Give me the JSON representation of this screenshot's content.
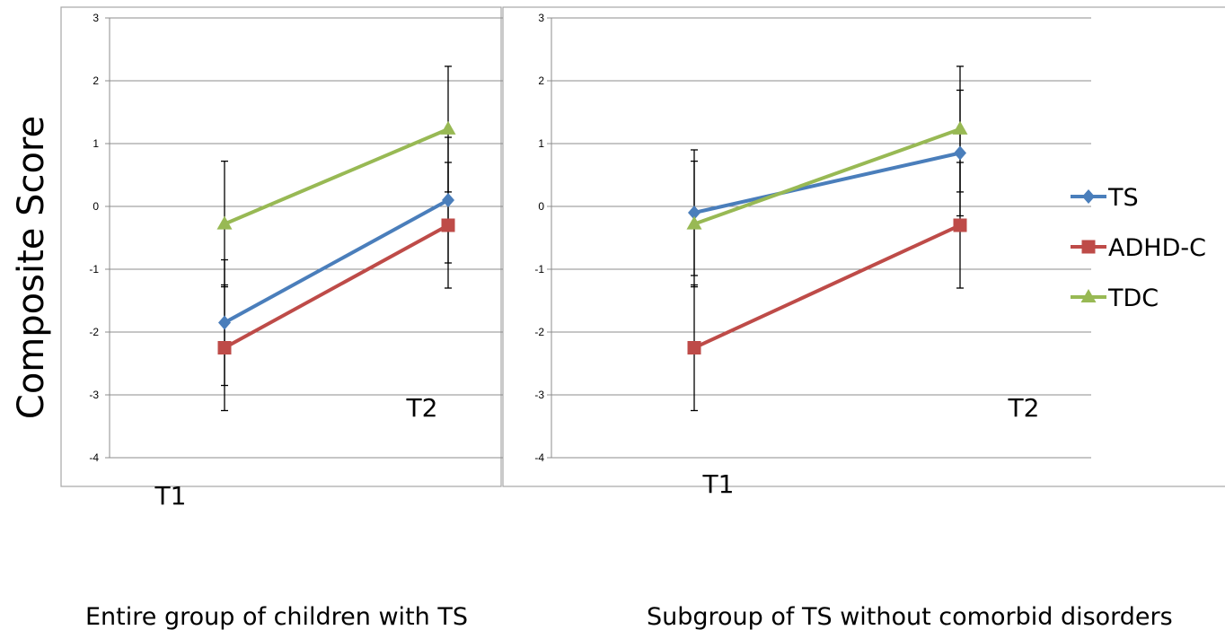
{
  "ylabel": "Composite Score",
  "legend": {
    "position": "right",
    "entries": [
      {
        "name": "TS",
        "color": "#4a7ebb",
        "marker": "diamond"
      },
      {
        "name": "ADHD-C",
        "color": "#be4b48",
        "marker": "square"
      },
      {
        "name": "TDC",
        "color": "#98b954",
        "marker": "triangle"
      }
    ]
  },
  "chart_data": [
    {
      "type": "line",
      "caption": "Entire group of children with TS",
      "categories": [
        "T1",
        "T2"
      ],
      "ylim": [
        -4,
        3
      ],
      "yticks": [
        "3",
        "2",
        "1",
        "0",
        "-1",
        "-2",
        "-3",
        "-4"
      ],
      "grid": true,
      "series": [
        {
          "name": "TS",
          "values": [
            -1.85,
            0.1
          ],
          "error": [
            1.0,
            1.0
          ]
        },
        {
          "name": "ADHD-C",
          "values": [
            -2.25,
            -0.3
          ],
          "error": [
            1.0,
            1.0
          ]
        },
        {
          "name": "TDC",
          "values": [
            -0.28,
            1.23
          ],
          "error": [
            1.0,
            1.0
          ]
        }
      ]
    },
    {
      "type": "line",
      "caption": "Subgroup of TS without comorbid disorders",
      "categories": [
        "T1",
        "T2"
      ],
      "ylim": [
        -4,
        3
      ],
      "yticks": [
        "3",
        "2",
        "1",
        "0",
        "-1",
        "-2",
        "-3",
        "-4"
      ],
      "grid": true,
      "series": [
        {
          "name": "TS",
          "values": [
            -0.1,
            0.85
          ],
          "error": [
            1.0,
            1.0
          ]
        },
        {
          "name": "ADHD-C",
          "values": [
            -2.25,
            -0.3
          ],
          "error": [
            1.0,
            1.0
          ]
        },
        {
          "name": "TDC",
          "values": [
            -0.28,
            1.23
          ],
          "error": [
            1.0,
            1.0
          ]
        }
      ]
    }
  ]
}
